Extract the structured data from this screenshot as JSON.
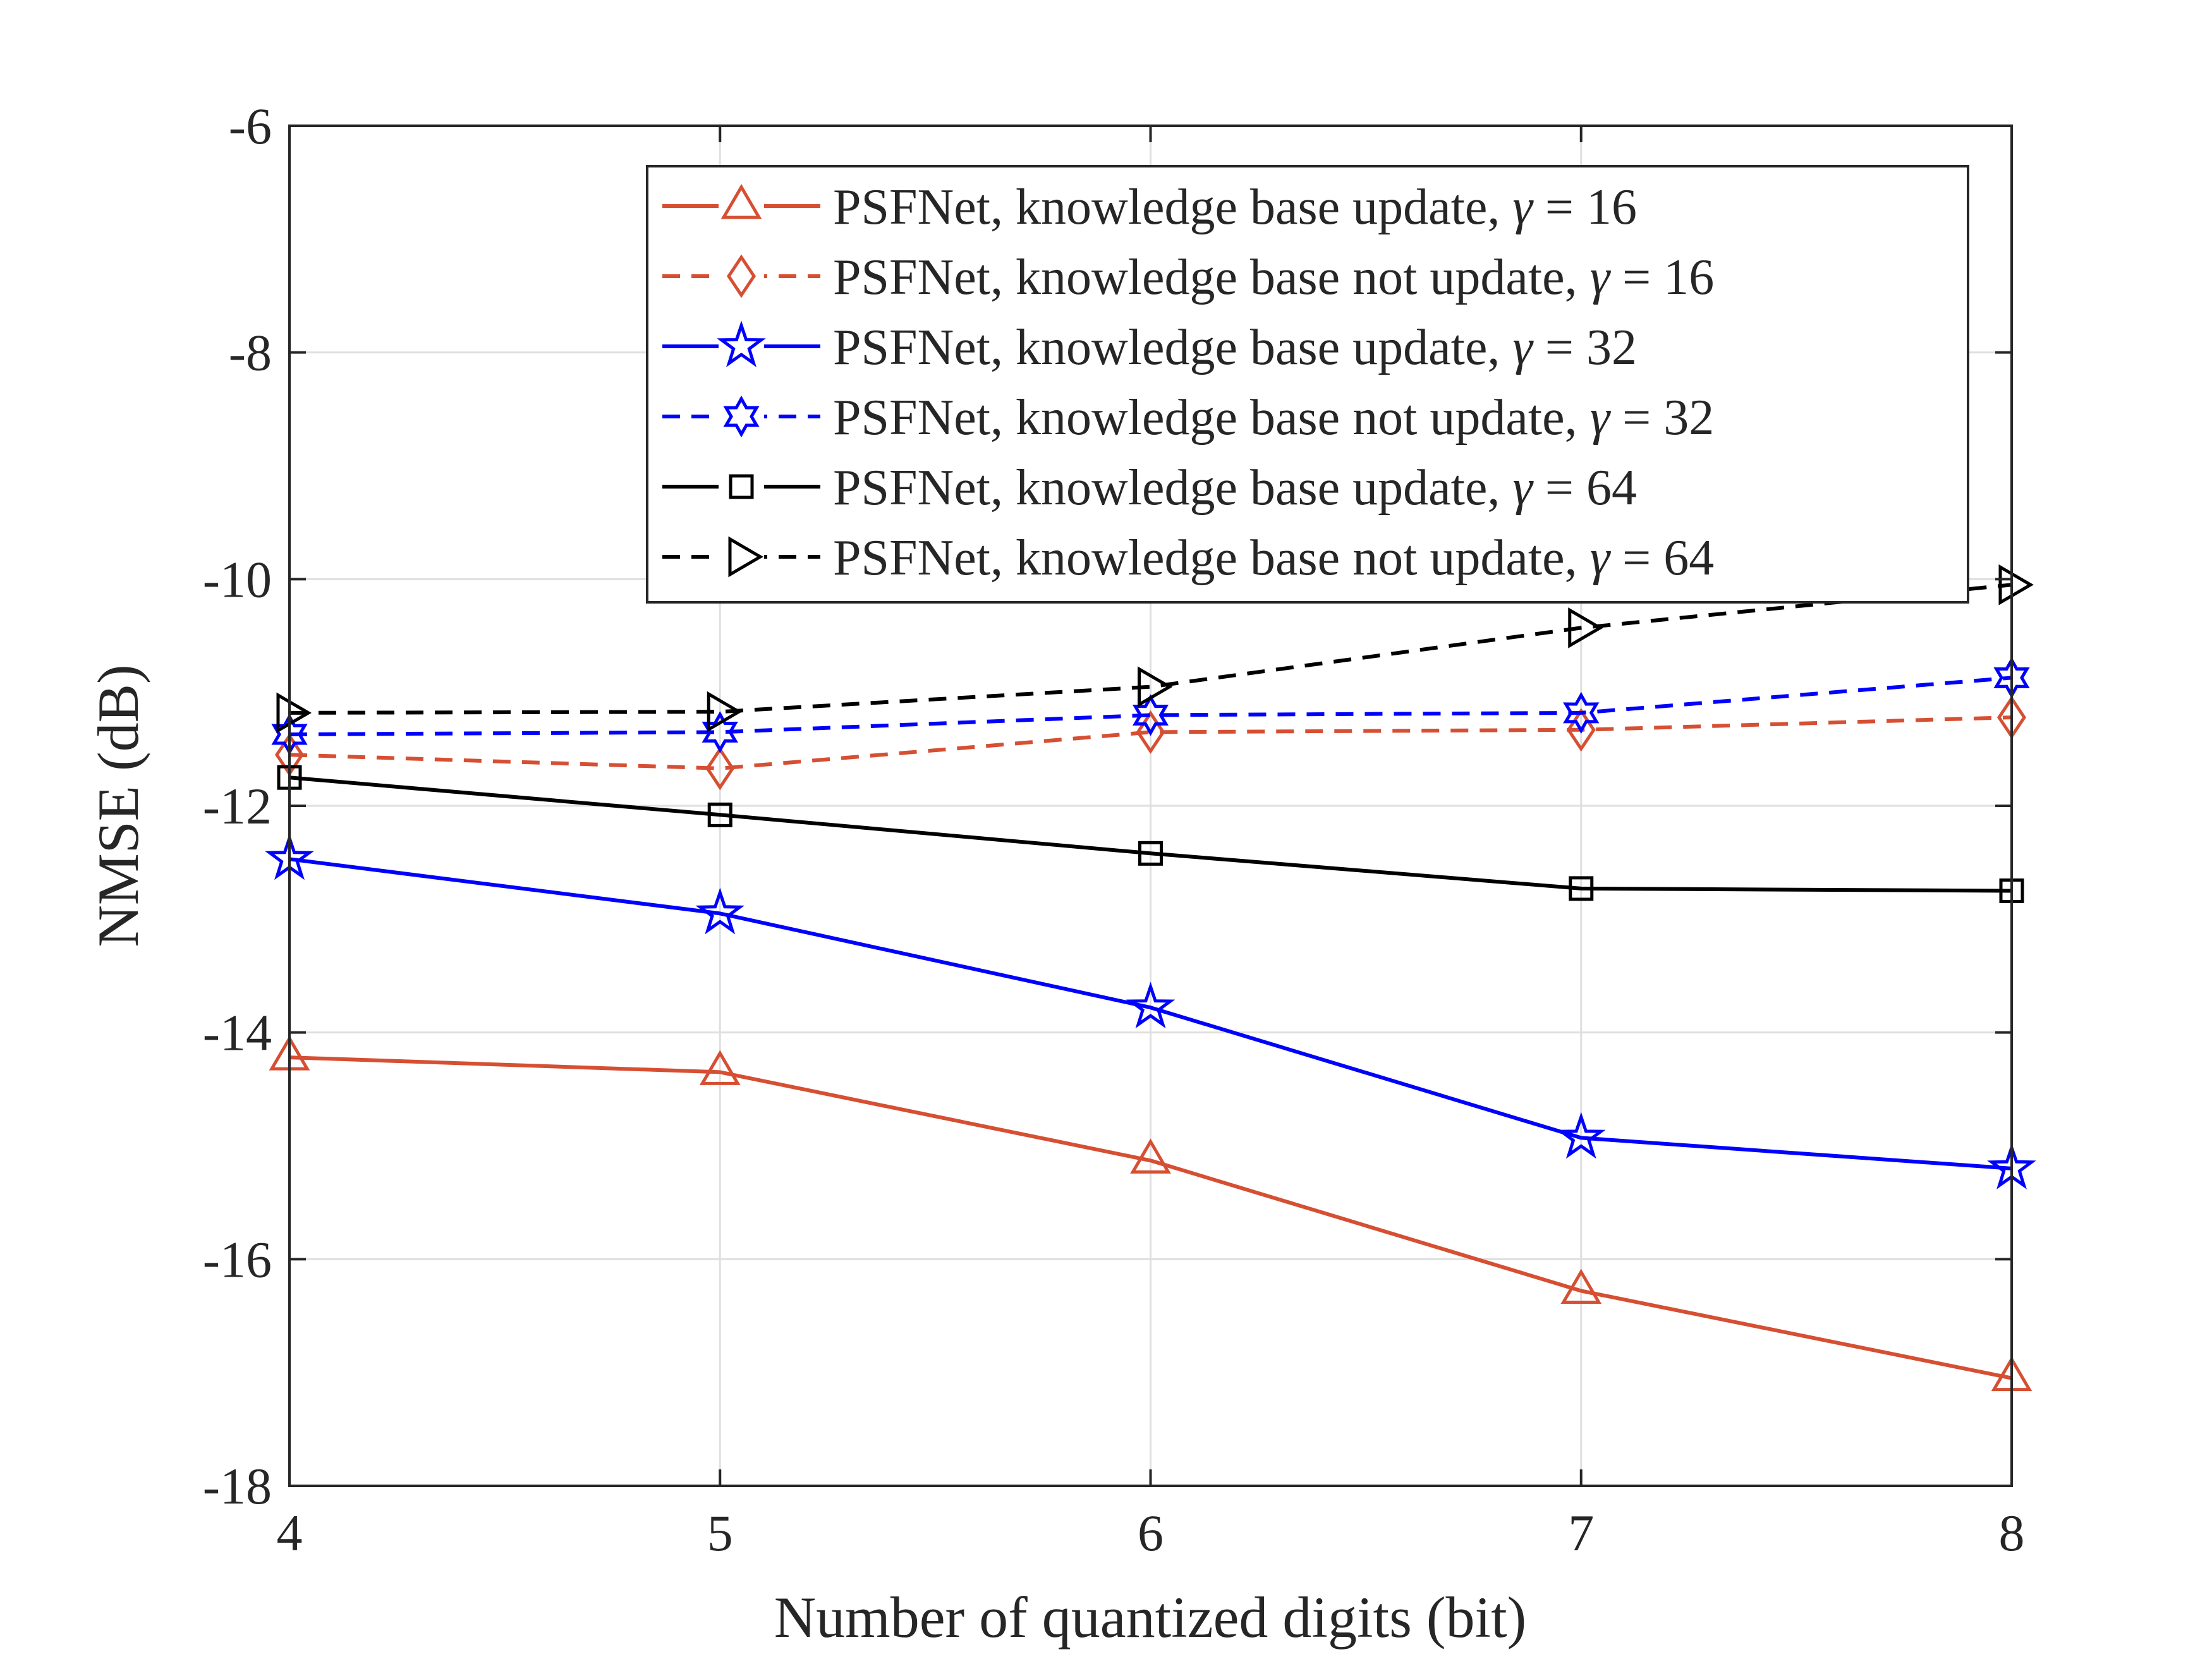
{
  "chart_data": {
    "type": "line",
    "xlabel": "Number of quantized digits (bit)",
    "ylabel": "NMSE (dB)",
    "xlim": [
      4,
      8
    ],
    "ylim": [
      -18,
      -6
    ],
    "xticks": [
      4,
      5,
      6,
      7,
      8
    ],
    "yticks": [
      -18,
      -16,
      -14,
      -12,
      -10,
      -8,
      -6
    ],
    "xtick_labels": [
      "4",
      "5",
      "6",
      "7",
      "8"
    ],
    "ytick_labels": [
      "-18",
      "-16",
      "-14",
      "-12",
      "-10",
      "-8",
      "-6"
    ],
    "grid": true,
    "legend_position": "top-right",
    "x": [
      4,
      5,
      6,
      7,
      8
    ],
    "series": [
      {
        "name": "PSFNet, knowledge base update, γ = 16",
        "legend_prefix": "PSFNet, knowledge base update, ",
        "gamma_symbol": "γ",
        "legend_suffix": " = 16",
        "color": "#d64f32",
        "dash": "solid",
        "marker": "triangle-up",
        "values": [
          -14.22,
          -14.35,
          -15.13,
          -16.28,
          -17.05
        ]
      },
      {
        "name": "PSFNet, knowledge base not update, γ = 16",
        "legend_prefix": "PSFNet, knowledge base not update, ",
        "gamma_symbol": "γ",
        "legend_suffix": " = 16",
        "color": "#d64f32",
        "dash": "dashed",
        "marker": "diamond",
        "values": [
          -11.55,
          -11.67,
          -11.35,
          -11.33,
          -11.22
        ]
      },
      {
        "name": "PSFNet, knowledge base update, γ = 32",
        "legend_prefix": "PSFNet, knowledge base update, ",
        "gamma_symbol": "γ",
        "legend_suffix": " = 32",
        "color": "#0000ff",
        "dash": "solid",
        "marker": "pentagram",
        "values": [
          -12.47,
          -12.95,
          -13.78,
          -14.93,
          -15.2
        ]
      },
      {
        "name": "PSFNet, knowledge base not update, γ = 32",
        "legend_prefix": "PSFNet, knowledge base not update, ",
        "gamma_symbol": "γ",
        "legend_suffix": " = 32",
        "color": "#0000ff",
        "dash": "dashed",
        "marker": "hexagram",
        "values": [
          -11.37,
          -11.35,
          -11.2,
          -11.18,
          -10.87
        ]
      },
      {
        "name": "PSFNet, knowledge base update, γ = 64",
        "legend_prefix": "PSFNet, knowledge base update, ",
        "gamma_symbol": "γ",
        "legend_suffix": " = 64",
        "color": "#000000",
        "dash": "solid",
        "marker": "square",
        "values": [
          -11.75,
          -12.08,
          -12.42,
          -12.73,
          -12.75
        ]
      },
      {
        "name": "PSFNet, knowledge base not update, γ = 64",
        "legend_prefix": "PSFNet, knowledge base not update, ",
        "gamma_symbol": "γ",
        "legend_suffix": " = 64",
        "color": "#000000",
        "dash": "dashed",
        "marker": "triangle-right",
        "values": [
          -11.18,
          -11.17,
          -10.95,
          -10.43,
          -10.05
        ]
      }
    ]
  }
}
